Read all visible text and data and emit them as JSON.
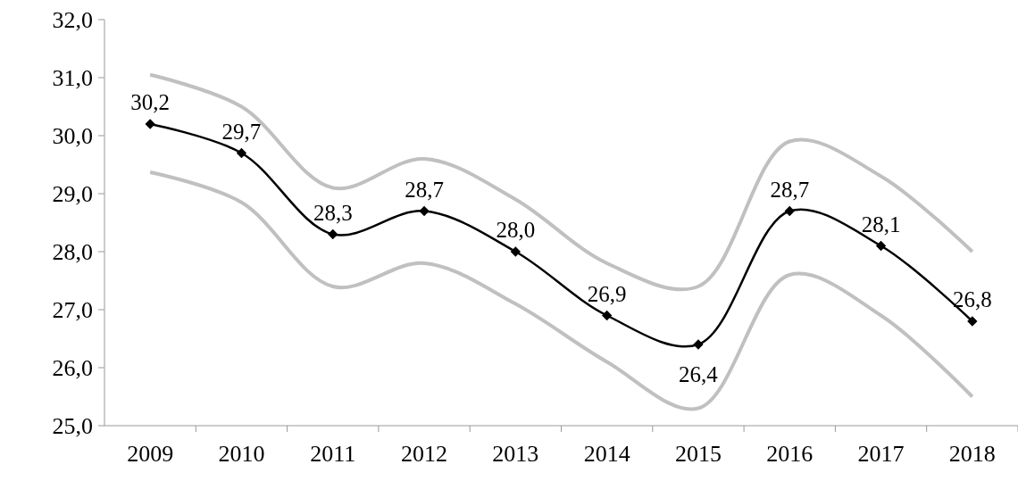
{
  "chart_data": {
    "type": "line",
    "categories": [
      "2009",
      "2010",
      "2011",
      "2012",
      "2013",
      "2014",
      "2015",
      "2016",
      "2017",
      "2018"
    ],
    "series": [
      {
        "color": "#c0c0c0",
        "marker": "none",
        "values": [
          31.05,
          30.5,
          29.1,
          29.6,
          28.9,
          27.8,
          27.4,
          29.9,
          29.3,
          28.0
        ]
      },
      {
        "color": "#c0c0c0",
        "marker": "none",
        "values": [
          29.37,
          28.85,
          27.4,
          27.8,
          27.1,
          26.1,
          25.3,
          27.6,
          26.9,
          25.5
        ]
      },
      {
        "color": "#000000",
        "marker": "diamond",
        "values": [
          30.2,
          29.7,
          28.3,
          28.7,
          28.0,
          26.9,
          26.4,
          28.7,
          28.1,
          26.8
        ],
        "value_labels": [
          "30,2",
          "29,7",
          "28,3",
          "28,7",
          "28,0",
          "26,9",
          "26,4",
          "28,7",
          "28,1",
          "26,8"
        ]
      }
    ],
    "ylim": [
      25,
      32
    ],
    "yticks": [
      {
        "value": 25,
        "label": "25,0"
      },
      {
        "value": 26,
        "label": "26,0"
      },
      {
        "value": 27,
        "label": "27,0"
      },
      {
        "value": 28,
        "label": "28,0"
      },
      {
        "value": 29,
        "label": "29,0"
      },
      {
        "value": 30,
        "label": "30,0"
      },
      {
        "value": 31,
        "label": "31,0"
      },
      {
        "value": 32,
        "label": "32,0"
      }
    ],
    "line_style": "solid"
  }
}
